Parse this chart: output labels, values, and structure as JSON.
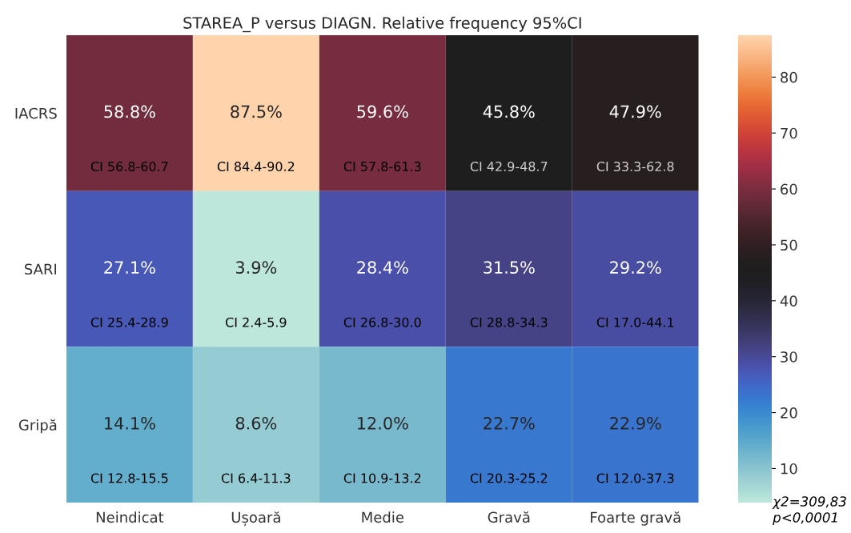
{
  "chart_data": {
    "type": "heatmap",
    "title": "STAREA_P versus DIAGN. Relative frequency 95%CI",
    "categories": [
      "Neindicat",
      "Ușoară",
      "Medie",
      "Gravă",
      "Foarte gravă"
    ],
    "y_categories": [
      "IACRS",
      "SARI",
      "Gripă"
    ],
    "cells": [
      [
        58.8,
        87.5,
        59.6,
        45.8,
        47.9
      ],
      [
        27.1,
        3.9,
        28.4,
        31.5,
        29.2
      ],
      [
        14.1,
        8.6,
        12.0,
        22.7,
        22.9
      ]
    ],
    "cell_labels": [
      [
        "58.8%\nCI 56.8-60.7",
        "87.5%\nCI 84.4-90.2",
        "59.6%\nCI 57.8-61.3",
        "45.8%\nCI 42.9-48.7",
        "47.9%\nCI 33.3-62.8"
      ],
      [
        "27.1%\nCI 25.4-28.9",
        "3.9%\nCI 2.4-5.9",
        "28.4%\nCI 26.8-30.0",
        "31.5%\nCI 28.8-34.3",
        "29.2%\nCI 17.0-44.1"
      ],
      [
        "14.1%\nCI 12.8-15.5",
        "8.6%\nCI 6.4-11.3",
        "12.0%\nCI 10.9-13.2",
        "22.7%\nCI 20.3-25.2",
        "22.9%\nCI 12.0-37.3"
      ]
    ],
    "clim": [
      3.9,
      87.5
    ],
    "cticks": [
      10,
      20,
      30,
      40,
      50,
      60,
      70,
      80
    ],
    "annotations": [
      "χ2=309,83\np<0,0001"
    ]
  }
}
